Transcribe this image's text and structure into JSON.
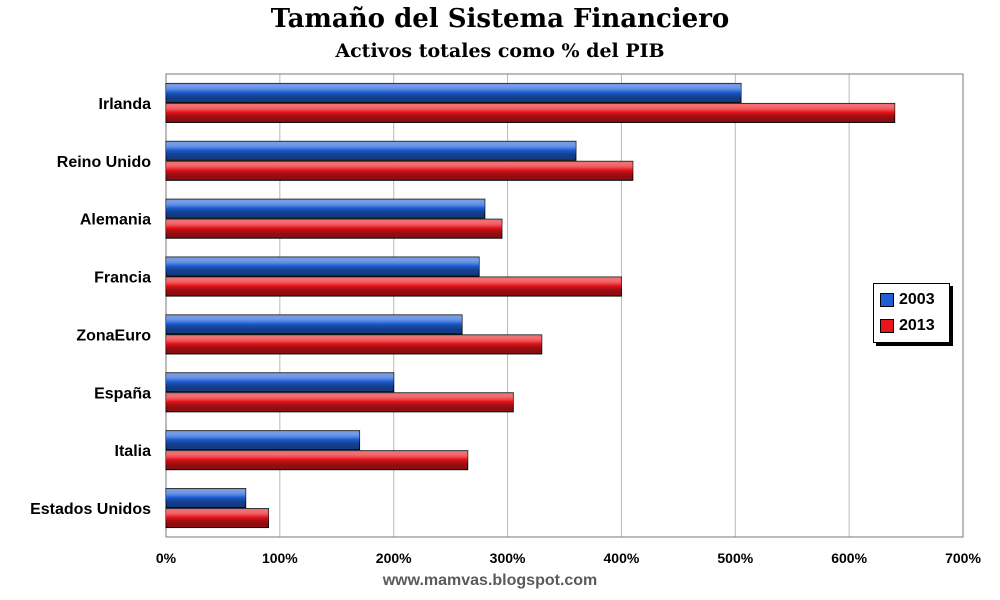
{
  "chart_data": {
    "type": "bar",
    "orientation": "horizontal",
    "title": "Tamaño del Sistema Financiero",
    "subtitle": "Activos totales como % del PIB",
    "categories": [
      "Irlanda",
      "Reino Unido",
      "Alemania",
      "Francia",
      "ZonaEuro",
      "España",
      "Italia",
      "Estados Unidos"
    ],
    "series": [
      {
        "name": "2003",
        "color": "#1f5fd6",
        "values": [
          505,
          360,
          280,
          275,
          260,
          200,
          170,
          70
        ]
      },
      {
        "name": "2013",
        "color": "#e8151b",
        "values": [
          640,
          410,
          295,
          400,
          330,
          305,
          265,
          90
        ]
      }
    ],
    "xlim": [
      0,
      700
    ],
    "xticks": [
      0,
      100,
      200,
      300,
      400,
      500,
      600,
      700
    ],
    "xtick_labels": [
      "0%",
      "100%",
      "200%",
      "300%",
      "400%",
      "500%",
      "600%",
      "700%"
    ],
    "xlabel": "",
    "ylabel": "",
    "grid": true,
    "legend_position": "right"
  },
  "source": "www.mamvas.blogspot.com"
}
